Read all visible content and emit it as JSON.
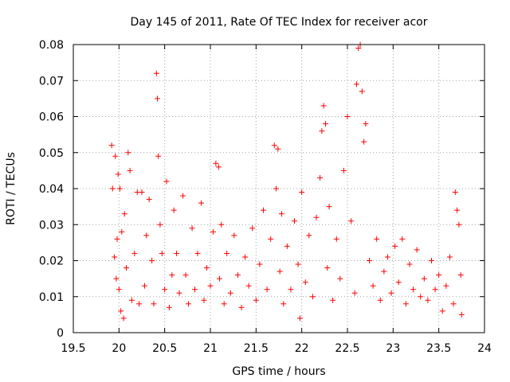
{
  "chart_data": {
    "type": "scatter",
    "title": "Day 145 of 2011, Rate Of TEC Index for receiver acor",
    "xlabel": "GPS time / hours",
    "ylabel": "ROTI / TECUs",
    "xlim": [
      19.5,
      24
    ],
    "ylim": [
      0,
      0.08
    ],
    "x_ticks": [
      "19.5",
      "20",
      "20.5",
      "21",
      "21.5",
      "22",
      "22.5",
      "23",
      "23.5",
      "24"
    ],
    "y_ticks": [
      "0",
      "0.01",
      "0.02",
      "0.03",
      "0.04",
      "0.05",
      "0.06",
      "0.07",
      "0.08"
    ],
    "grid": true,
    "marker": "+",
    "marker_color": "#ff0000",
    "series": [
      {
        "name": "ROTI",
        "x": [
          19.92,
          19.93,
          19.95,
          19.96,
          19.97,
          19.98,
          19.99,
          20.0,
          20.01,
          20.02,
          20.03,
          20.05,
          20.06,
          20.08,
          20.1,
          20.12,
          20.14,
          20.17,
          20.2,
          20.22,
          20.25,
          20.28,
          20.3,
          20.33,
          20.36,
          20.38,
          20.41,
          20.42,
          20.43,
          20.45,
          20.47,
          20.5,
          20.52,
          20.55,
          20.58,
          20.6,
          20.63,
          20.66,
          20.7,
          20.73,
          20.76,
          20.8,
          20.83,
          20.86,
          20.9,
          20.93,
          20.96,
          21.0,
          21.03,
          21.06,
          21.09,
          21.1,
          21.12,
          21.15,
          21.18,
          21.22,
          21.26,
          21.3,
          21.34,
          21.38,
          21.42,
          21.46,
          21.5,
          21.54,
          21.58,
          21.62,
          21.66,
          21.7,
          21.72,
          21.74,
          21.76,
          21.78,
          21.8,
          21.84,
          21.88,
          21.92,
          21.96,
          21.98,
          22.0,
          22.04,
          22.08,
          22.12,
          22.16,
          22.2,
          22.22,
          22.24,
          22.26,
          22.28,
          22.3,
          22.34,
          22.38,
          22.42,
          22.46,
          22.5,
          22.54,
          22.58,
          22.6,
          22.62,
          22.64,
          22.66,
          22.68,
          22.7,
          22.74,
          22.78,
          22.82,
          22.86,
          22.9,
          22.94,
          22.98,
          23.02,
          23.06,
          23.1,
          23.14,
          23.18,
          23.22,
          23.26,
          23.3,
          23.34,
          23.38,
          23.42,
          23.46,
          23.5,
          23.54,
          23.58,
          23.62,
          23.66,
          23.68,
          23.7,
          23.72,
          23.74,
          23.75
        ],
        "y": [
          0.052,
          0.04,
          0.021,
          0.049,
          0.015,
          0.026,
          0.044,
          0.012,
          0.04,
          0.006,
          0.028,
          0.004,
          0.033,
          0.018,
          0.05,
          0.045,
          0.009,
          0.022,
          0.039,
          0.008,
          0.039,
          0.013,
          0.027,
          0.037,
          0.02,
          0.008,
          0.072,
          0.065,
          0.049,
          0.03,
          0.022,
          0.012,
          0.042,
          0.007,
          0.016,
          0.034,
          0.022,
          0.011,
          0.038,
          0.016,
          0.008,
          0.029,
          0.012,
          0.022,
          0.036,
          0.009,
          0.018,
          0.013,
          0.028,
          0.047,
          0.046,
          0.015,
          0.03,
          0.008,
          0.022,
          0.011,
          0.027,
          0.016,
          0.007,
          0.021,
          0.013,
          0.029,
          0.009,
          0.019,
          0.034,
          0.012,
          0.026,
          0.052,
          0.04,
          0.051,
          0.017,
          0.033,
          0.008,
          0.024,
          0.012,
          0.031,
          0.019,
          0.004,
          0.039,
          0.014,
          0.027,
          0.01,
          0.032,
          0.043,
          0.056,
          0.063,
          0.058,
          0.018,
          0.035,
          0.009,
          0.026,
          0.015,
          0.045,
          0.06,
          0.031,
          0.011,
          0.069,
          0.079,
          0.08,
          0.067,
          0.053,
          0.058,
          0.02,
          0.013,
          0.026,
          0.009,
          0.017,
          0.021,
          0.011,
          0.024,
          0.014,
          0.026,
          0.008,
          0.019,
          0.012,
          0.023,
          0.01,
          0.015,
          0.009,
          0.02,
          0.012,
          0.016,
          0.006,
          0.013,
          0.021,
          0.008,
          0.039,
          0.034,
          0.03,
          0.016,
          0.005
        ]
      }
    ]
  }
}
